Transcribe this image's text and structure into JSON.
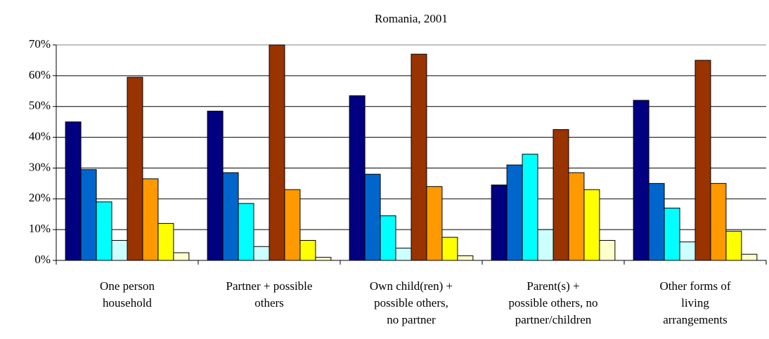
{
  "chart_data": {
    "type": "bar",
    "title": "Romania, 2001",
    "categories": [
      "One person\nhousehold",
      "Partner + possible\nothers",
      "Own child(ren) +\npossible others,\nno partner",
      "Parent(s) +\npossible others, no\npartner/children",
      "Other forms of\nliving\narrangements"
    ],
    "series": [
      {
        "color": "#000080",
        "values": [
          45,
          48.5,
          53.5,
          24.5,
          52
        ]
      },
      {
        "color": "#0066cc",
        "values": [
          29.5,
          28.5,
          28,
          31,
          25
        ]
      },
      {
        "color": "#00ffff",
        "values": [
          19,
          18.5,
          14.5,
          34.5,
          17
        ]
      },
      {
        "color": "#ccffff",
        "values": [
          6.5,
          4.5,
          4,
          10,
          6
        ]
      },
      {
        "color": "#993300",
        "values": [
          59.5,
          70,
          67,
          42.5,
          65
        ]
      },
      {
        "color": "#ff9900",
        "values": [
          26.5,
          23,
          24,
          28.5,
          25
        ]
      },
      {
        "color": "#ffff00",
        "values": [
          12,
          6.5,
          7.5,
          23,
          9.5
        ]
      },
      {
        "color": "#ffffcc",
        "values": [
          2.5,
          1,
          1.5,
          6.5,
          2
        ]
      }
    ],
    "ylim": [
      0,
      70
    ],
    "yticks": [
      {
        "value": 0,
        "label": "0%"
      },
      {
        "value": 10,
        "label": "10%"
      },
      {
        "value": 20,
        "label": "20%"
      },
      {
        "value": 30,
        "label": "30%"
      },
      {
        "value": 40,
        "label": "40%"
      },
      {
        "value": 50,
        "label": "50%"
      },
      {
        "value": 60,
        "label": "60%"
      },
      {
        "value": 70,
        "label": "70%"
      }
    ],
    "grid": true
  }
}
